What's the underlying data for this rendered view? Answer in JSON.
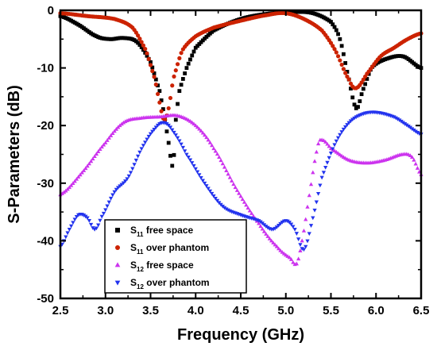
{
  "chart_data": {
    "type": "scatter",
    "title": "",
    "xlabel": "Frequency (GHz)",
    "ylabel": "S-Parameters (dB)",
    "xlim": [
      2.5,
      6.5
    ],
    "ylim": [
      -50,
      0
    ],
    "xticks": [
      "2.5",
      "3.0",
      "3.5",
      "4.0",
      "4.5",
      "5.0",
      "5.5",
      "6.0",
      "6.5"
    ],
    "yticks": [
      "0",
      "-10",
      "-20",
      "-30",
      "-40",
      "-50"
    ],
    "grid": false,
    "legend_position": "bottom-center",
    "series": [
      {
        "name": "S11 free space",
        "label_main": "S",
        "label_sub": "11",
        "label_rest": " free space",
        "marker": "square",
        "color": "#000000",
        "points": [
          [
            2.5,
            -1
          ],
          [
            2.7,
            -2.5
          ],
          [
            2.9,
            -4.5
          ],
          [
            3.05,
            -5
          ],
          [
            3.2,
            -4.8
          ],
          [
            3.35,
            -5.5
          ],
          [
            3.5,
            -9
          ],
          [
            3.6,
            -14
          ],
          [
            3.65,
            -18
          ],
          [
            3.7,
            -23
          ],
          [
            3.75,
            -27
          ],
          [
            3.78,
            -19
          ],
          [
            3.82,
            -14
          ],
          [
            3.9,
            -10
          ],
          [
            4.0,
            -6.5
          ],
          [
            4.2,
            -3.5
          ],
          [
            4.5,
            -1.5
          ],
          [
            4.8,
            -0.6
          ],
          [
            5.1,
            -0.3
          ],
          [
            5.3,
            -0.5
          ],
          [
            5.5,
            -2
          ],
          [
            5.6,
            -5
          ],
          [
            5.7,
            -12
          ],
          [
            5.78,
            -17
          ],
          [
            5.85,
            -14
          ],
          [
            5.95,
            -10
          ],
          [
            6.1,
            -8.5
          ],
          [
            6.3,
            -8
          ],
          [
            6.5,
            -10
          ]
        ]
      },
      {
        "name": "S11 over phantom",
        "label_main": "S",
        "label_sub": "11",
        "label_rest": " over phantom",
        "marker": "circle",
        "color": "#cc2200",
        "points": [
          [
            2.5,
            -0.5
          ],
          [
            2.8,
            -1
          ],
          [
            3.1,
            -1.5
          ],
          [
            3.3,
            -3
          ],
          [
            3.45,
            -7
          ],
          [
            3.55,
            -12
          ],
          [
            3.6,
            -16
          ],
          [
            3.65,
            -19
          ],
          [
            3.7,
            -17
          ],
          [
            3.75,
            -12
          ],
          [
            3.85,
            -7
          ],
          [
            4.0,
            -4.5
          ],
          [
            4.2,
            -3
          ],
          [
            4.5,
            -1.8
          ],
          [
            4.8,
            -0.8
          ],
          [
            5.0,
            -0.5
          ],
          [
            5.2,
            -1.5
          ],
          [
            5.4,
            -3.5
          ],
          [
            5.55,
            -7
          ],
          [
            5.7,
            -12
          ],
          [
            5.78,
            -13.5
          ],
          [
            5.9,
            -11
          ],
          [
            6.05,
            -8
          ],
          [
            6.2,
            -6.5
          ],
          [
            6.35,
            -5
          ],
          [
            6.5,
            -4
          ]
        ]
      },
      {
        "name": "S12 free space",
        "label_main": "S",
        "label_sub": "12",
        "label_rest": " free space",
        "marker": "triangle-up",
        "color": "#cc33ee",
        "points": [
          [
            2.5,
            -32
          ],
          [
            2.75,
            -28
          ],
          [
            3.0,
            -23
          ],
          [
            3.2,
            -19.5
          ],
          [
            3.4,
            -18.7
          ],
          [
            3.6,
            -18.5
          ],
          [
            3.8,
            -18.3
          ],
          [
            4.0,
            -20
          ],
          [
            4.2,
            -24
          ],
          [
            4.45,
            -31
          ],
          [
            4.7,
            -37
          ],
          [
            4.9,
            -41
          ],
          [
            5.05,
            -43
          ],
          [
            5.12,
            -44
          ],
          [
            5.18,
            -40
          ],
          [
            5.25,
            -33
          ],
          [
            5.35,
            -24
          ],
          [
            5.4,
            -22.5
          ],
          [
            5.5,
            -24
          ],
          [
            5.7,
            -26
          ],
          [
            5.9,
            -26.5
          ],
          [
            6.1,
            -26
          ],
          [
            6.3,
            -25
          ],
          [
            6.4,
            -25.5
          ],
          [
            6.5,
            -28.5
          ]
        ]
      },
      {
        "name": "S12 over phantom",
        "label_main": "S",
        "label_sub": "12",
        "label_rest": " over phantom",
        "marker": "triangle-down",
        "color": "#2233ee",
        "points": [
          [
            2.5,
            -41
          ],
          [
            2.6,
            -38
          ],
          [
            2.7,
            -35.5
          ],
          [
            2.8,
            -36
          ],
          [
            2.88,
            -38
          ],
          [
            2.95,
            -36
          ],
          [
            3.1,
            -31.5
          ],
          [
            3.25,
            -29
          ],
          [
            3.4,
            -24
          ],
          [
            3.55,
            -20.5
          ],
          [
            3.65,
            -19.5
          ],
          [
            3.75,
            -21
          ],
          [
            3.9,
            -25
          ],
          [
            4.1,
            -30
          ],
          [
            4.3,
            -34
          ],
          [
            4.5,
            -35.5
          ],
          [
            4.7,
            -36.5
          ],
          [
            4.85,
            -38
          ],
          [
            5.0,
            -36.5
          ],
          [
            5.1,
            -38
          ],
          [
            5.2,
            -41.5
          ],
          [
            5.3,
            -36
          ],
          [
            5.4,
            -29
          ],
          [
            5.55,
            -23
          ],
          [
            5.7,
            -19.5
          ],
          [
            5.85,
            -18
          ],
          [
            6.0,
            -17.7
          ],
          [
            6.2,
            -18.5
          ],
          [
            6.35,
            -20
          ],
          [
            6.5,
            -21.5
          ]
        ]
      }
    ]
  }
}
